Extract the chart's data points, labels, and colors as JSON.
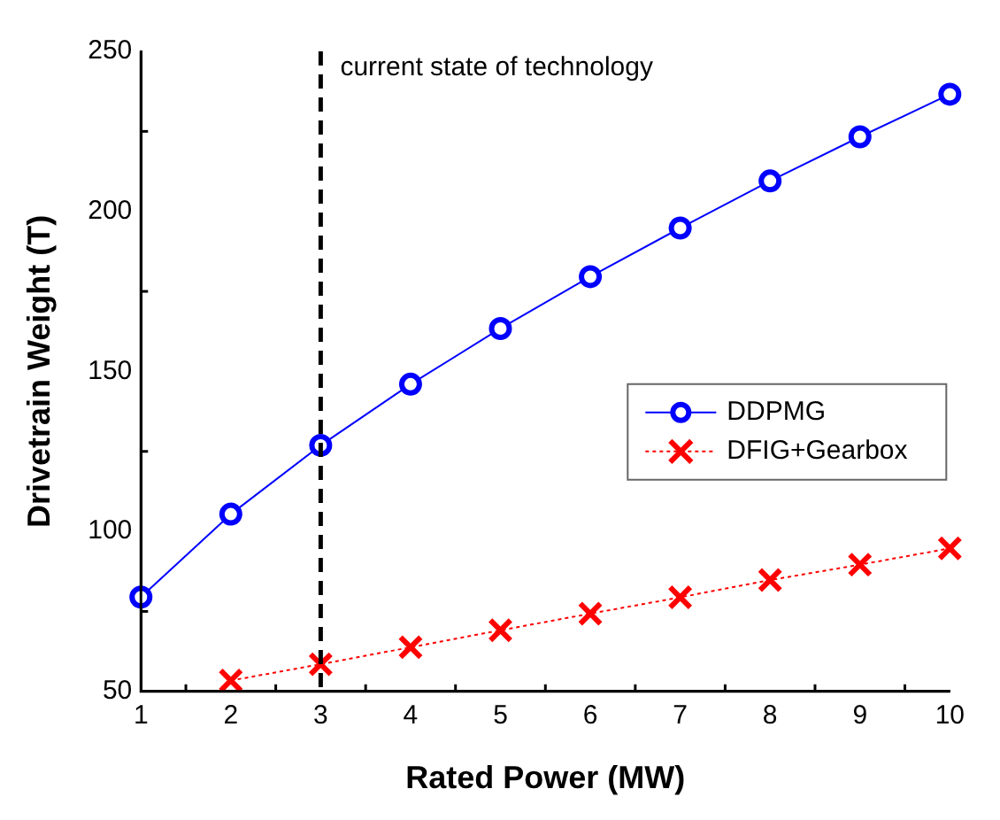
{
  "chart_data": {
    "type": "line",
    "xlabel": "Rated Power (MW)",
    "ylabel": "Drivetrain Weight (T)",
    "x": [
      1,
      2,
      3,
      4,
      5,
      6,
      7,
      8,
      9,
      10
    ],
    "series": [
      {
        "name": "DDPMG",
        "color": "#0000ff",
        "marker": "circle",
        "values": [
          79.5,
          105.4,
          126.9,
          146,
          163.4,
          179.6,
          194.8,
          209.5,
          223.3,
          236.6
        ]
      },
      {
        "name": "DFIG+Gearbox",
        "color": "#ff0000",
        "marker": "cross",
        "line_style": "dotted",
        "values": [
          null,
          53.4,
          58.5,
          63.8,
          69.1,
          74.3,
          79.4,
          84.8,
          89.6,
          94.7
        ]
      }
    ],
    "xlim": [
      1,
      10
    ],
    "xticks": [
      1,
      2,
      3,
      4,
      5,
      6,
      7,
      8,
      9,
      10
    ],
    "ylim": [
      50,
      250
    ],
    "yticks": [
      50,
      100,
      150,
      200,
      250
    ],
    "grid": false,
    "legend": "right",
    "ref_lines": [
      {
        "axis": "x",
        "value": 3,
        "label": "current state of technology",
        "color": "#000000",
        "line_style": "dashed"
      }
    ]
  }
}
